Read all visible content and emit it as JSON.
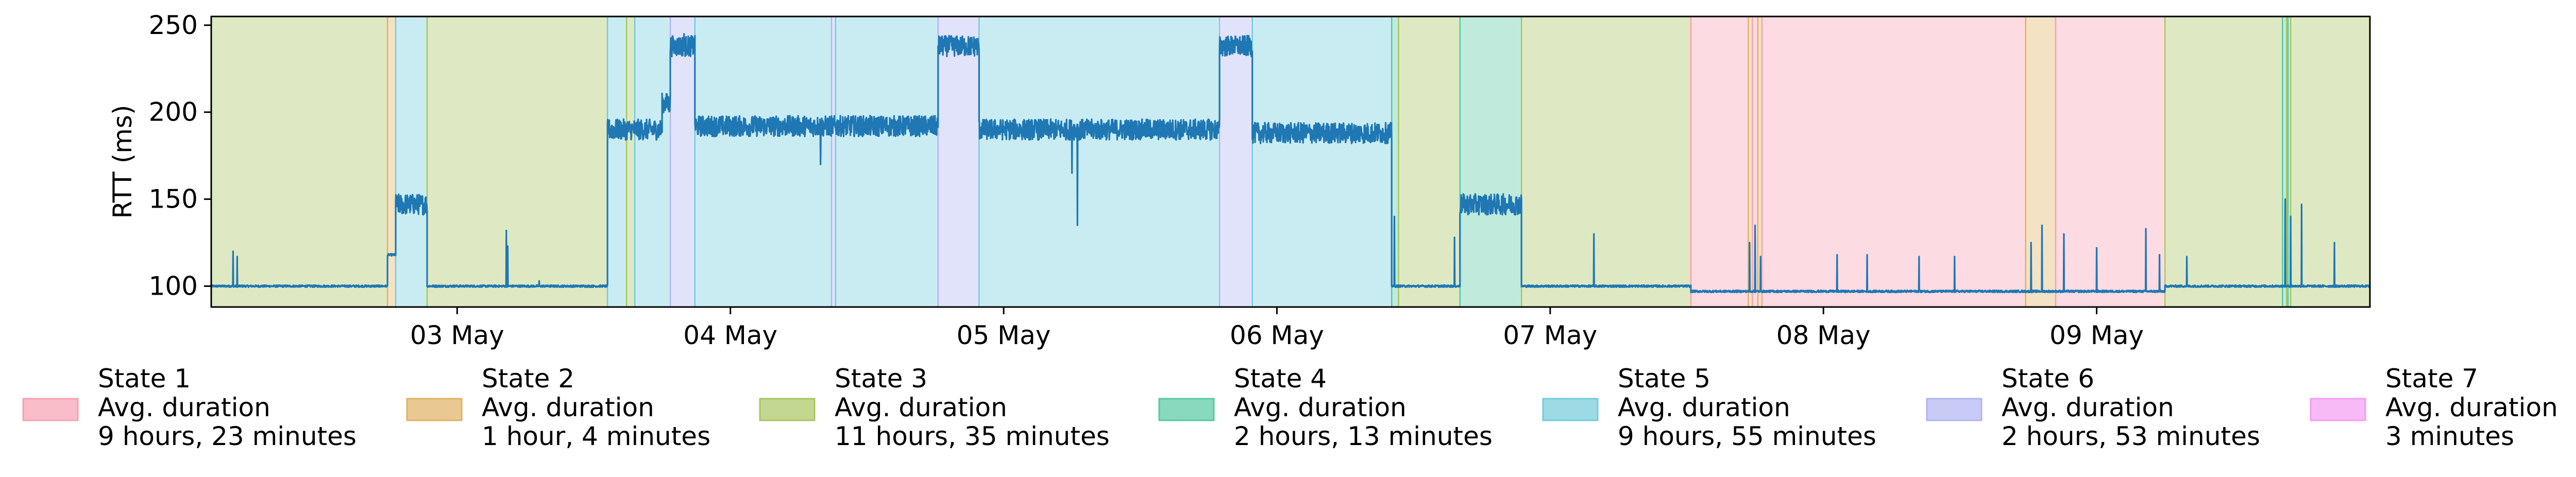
{
  "chart_data": {
    "type": "line",
    "ylabel": "RTT (ms)",
    "ylim": [
      88,
      255
    ],
    "yticks": [
      100,
      150,
      200,
      250
    ],
    "xlim": [
      0,
      7.9
    ],
    "x_unit": "days from 02 May 00:00",
    "xticks": [
      {
        "label": "03 May",
        "x": 0.9
      },
      {
        "label": "04 May",
        "x": 1.9
      },
      {
        "label": "05 May",
        "x": 2.9
      },
      {
        "label": "06 May",
        "x": 3.9
      },
      {
        "label": "07 May",
        "x": 4.9
      },
      {
        "label": "08 May",
        "x": 5.9
      },
      {
        "label": "09 May",
        "x": 6.9
      }
    ],
    "line_color": "#1f77b4",
    "states": [
      {
        "label": "State 1",
        "duration_title": "Avg. duration",
        "duration": "9 hours, 23 minutes",
        "color": "#f7a1b2"
      },
      {
        "label": "State 2",
        "duration_title": "Avg. duration",
        "duration": "1 hour, 4 minutes",
        "color": "#e0b262"
      },
      {
        "label": "State 3",
        "duration_title": "Avg. duration",
        "duration": "11 hours, 35 minutes",
        "color": "#a9c661"
      },
      {
        "label": "State 4",
        "duration_title": "Avg. duration",
        "duration": "2 hours, 13 minutes",
        "color": "#56c9a3"
      },
      {
        "label": "State 5",
        "duration_title": "Avg. duration",
        "duration": "9 hours, 55 minutes",
        "color": "#72ccdc"
      },
      {
        "label": "State 6",
        "duration_title": "Avg. duration",
        "duration": "2 hours, 53 minutes",
        "color": "#b1b5f2"
      },
      {
        "label": "State 7",
        "duration_title": "Avg. duration",
        "duration": "3 minutes",
        "color": "#f59cf2"
      }
    ],
    "segments": [
      {
        "state": 3,
        "start": 0.0,
        "end": 0.645
      },
      {
        "state": 2,
        "start": 0.645,
        "end": 0.675
      },
      {
        "state": 5,
        "start": 0.675,
        "end": 0.79
      },
      {
        "state": 3,
        "start": 0.79,
        "end": 1.45
      },
      {
        "state": 5,
        "start": 1.45,
        "end": 1.52
      },
      {
        "state": 3,
        "start": 1.52,
        "end": 1.55
      },
      {
        "state": 5,
        "start": 1.55,
        "end": 1.68
      },
      {
        "state": 6,
        "start": 1.68,
        "end": 1.77
      },
      {
        "state": 5,
        "start": 1.77,
        "end": 2.27
      },
      {
        "state": 6,
        "start": 2.27,
        "end": 2.285
      },
      {
        "state": 5,
        "start": 2.285,
        "end": 2.66
      },
      {
        "state": 6,
        "start": 2.66,
        "end": 2.81
      },
      {
        "state": 5,
        "start": 2.81,
        "end": 3.69
      },
      {
        "state": 6,
        "start": 3.69,
        "end": 3.81
      },
      {
        "state": 5,
        "start": 3.81,
        "end": 4.32
      },
      {
        "state": 4,
        "start": 4.32,
        "end": 4.345
      },
      {
        "state": 3,
        "start": 4.345,
        "end": 4.57
      },
      {
        "state": 4,
        "start": 4.57,
        "end": 4.795
      },
      {
        "state": 3,
        "start": 4.795,
        "end": 5.415
      },
      {
        "state": 1,
        "start": 5.415,
        "end": 5.625
      },
      {
        "state": 2,
        "start": 5.625,
        "end": 5.64
      },
      {
        "state": 1,
        "start": 5.64,
        "end": 5.66
      },
      {
        "state": 2,
        "start": 5.66,
        "end": 5.675
      },
      {
        "state": 1,
        "start": 5.675,
        "end": 6.64
      },
      {
        "state": 2,
        "start": 6.64,
        "end": 6.75
      },
      {
        "state": 1,
        "start": 6.75,
        "end": 7.15
      },
      {
        "state": 3,
        "start": 7.15,
        "end": 7.58
      },
      {
        "state": 4,
        "start": 7.58,
        "end": 7.595
      },
      {
        "state": 3,
        "start": 7.595,
        "end": 7.6
      },
      {
        "state": 4,
        "start": 7.6,
        "end": 7.61
      },
      {
        "state": 3,
        "start": 7.61,
        "end": 7.9
      }
    ],
    "rtt_levels": [
      {
        "start": 0.0,
        "end": 0.645,
        "value": 100
      },
      {
        "start": 0.645,
        "end": 0.675,
        "value": 118
      },
      {
        "start": 0.675,
        "end": 0.79,
        "value": 147
      },
      {
        "start": 0.79,
        "end": 1.45,
        "value": 100
      },
      {
        "start": 1.45,
        "end": 1.65,
        "value": 190
      },
      {
        "start": 1.65,
        "end": 1.68,
        "value": 205
      },
      {
        "start": 1.68,
        "end": 1.77,
        "value": 238
      },
      {
        "start": 1.77,
        "end": 2.66,
        "value": 192
      },
      {
        "start": 2.66,
        "end": 2.81,
        "value": 238
      },
      {
        "start": 2.81,
        "end": 3.69,
        "value": 190
      },
      {
        "start": 3.69,
        "end": 3.81,
        "value": 238
      },
      {
        "start": 3.81,
        "end": 4.32,
        "value": 188
      },
      {
        "start": 4.32,
        "end": 4.57,
        "value": 100
      },
      {
        "start": 4.57,
        "end": 4.795,
        "value": 147
      },
      {
        "start": 4.795,
        "end": 5.415,
        "value": 100
      },
      {
        "start": 5.415,
        "end": 7.15,
        "value": 97
      },
      {
        "start": 7.15,
        "end": 7.9,
        "value": 100
      }
    ],
    "rtt_spikes": [
      {
        "x": 0.08,
        "value": 120
      },
      {
        "x": 0.095,
        "value": 117
      },
      {
        "x": 1.08,
        "value": 132
      },
      {
        "x": 1.085,
        "value": 123
      },
      {
        "x": 1.2,
        "value": 103
      },
      {
        "x": 1.73,
        "value": 245
      },
      {
        "x": 2.23,
        "value": 170
      },
      {
        "x": 3.15,
        "value": 165
      },
      {
        "x": 3.17,
        "value": 135
      },
      {
        "x": 4.33,
        "value": 140
      },
      {
        "x": 4.55,
        "value": 128
      },
      {
        "x": 5.06,
        "value": 130
      },
      {
        "x": 5.63,
        "value": 125
      },
      {
        "x": 5.65,
        "value": 135
      },
      {
        "x": 5.67,
        "value": 117
      },
      {
        "x": 5.95,
        "value": 118
      },
      {
        "x": 6.06,
        "value": 118
      },
      {
        "x": 6.25,
        "value": 117
      },
      {
        "x": 6.38,
        "value": 117
      },
      {
        "x": 6.66,
        "value": 125
      },
      {
        "x": 6.7,
        "value": 135
      },
      {
        "x": 6.78,
        "value": 130
      },
      {
        "x": 6.9,
        "value": 122
      },
      {
        "x": 7.08,
        "value": 133
      },
      {
        "x": 7.13,
        "value": 118
      },
      {
        "x": 7.23,
        "value": 117
      },
      {
        "x": 7.59,
        "value": 150
      },
      {
        "x": 7.61,
        "value": 140
      },
      {
        "x": 7.65,
        "value": 147
      },
      {
        "x": 7.77,
        "value": 125
      }
    ]
  }
}
